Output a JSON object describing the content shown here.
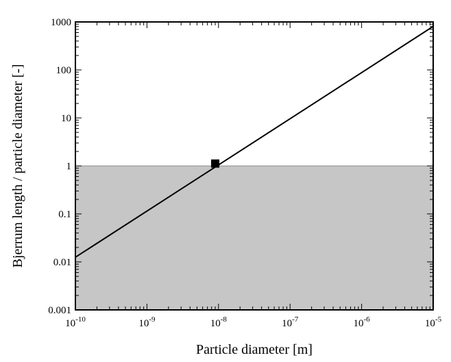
{
  "chart_data": {
    "type": "line",
    "xscale": "log",
    "yscale": "log",
    "xlim": [
      1e-10,
      1e-05
    ],
    "ylim": [
      0.001,
      1000
    ],
    "xlabel": "Particle diameter [m]",
    "ylabel": "Bjerrum length  / particle diameter [-]",
    "x_ticks": [
      {
        "value": 1e-10,
        "base": "10",
        "exp": "-10"
      },
      {
        "value": 1e-09,
        "base": "10",
        "exp": "-9"
      },
      {
        "value": 1e-08,
        "base": "10",
        "exp": "-8"
      },
      {
        "value": 1e-07,
        "base": "10",
        "exp": "-7"
      },
      {
        "value": 1e-06,
        "base": "10",
        "exp": "-6"
      },
      {
        "value": 1e-05,
        "base": "10",
        "exp": "-5"
      }
    ],
    "y_ticks": [
      {
        "value": 0.001,
        "label": "0.001"
      },
      {
        "value": 0.01,
        "label": "0.01"
      },
      {
        "value": 0.1,
        "label": "0.1"
      },
      {
        "value": 1,
        "label": "1"
      },
      {
        "value": 10,
        "label": "10"
      },
      {
        "value": 100,
        "label": "100"
      },
      {
        "value": 1000,
        "label": "1000"
      }
    ],
    "shaded_region": {
      "y_from": 0.001,
      "y_to": 1,
      "color": "#c6c6c6"
    },
    "series": [
      {
        "x": [
          1e-10,
          1.25e-05
        ],
        "y": [
          0.0125,
          1000
        ]
      }
    ],
    "marker": {
      "x": 9e-09,
      "y": 1.12,
      "shape": "square"
    },
    "grid": false,
    "colors": {
      "line": "#000000",
      "shade": "#c6c6c6",
      "frame": "#000000"
    }
  }
}
